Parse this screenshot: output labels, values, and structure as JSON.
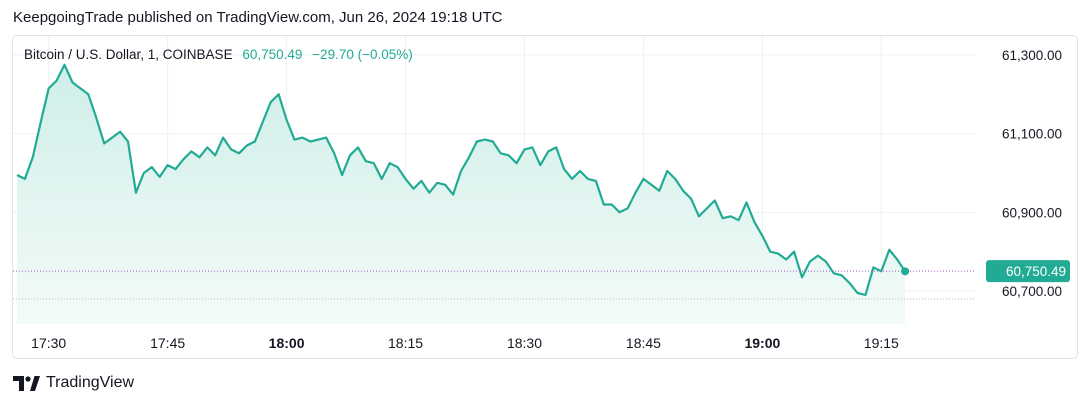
{
  "header": {
    "publisher_line": "KeepgoingTrade published on TradingView.com, Jun 26, 2024 19:18 UTC"
  },
  "legend": {
    "symbol": "Bitcoin / U.S. Dollar, 1, COINBASE",
    "last_price": "60,750.49",
    "change": "−29.70 (−0.05%)"
  },
  "footer": {
    "brand": "TradingView",
    "logo_icon": "tradingview-logo-icon"
  },
  "colors": {
    "line": "#22ab94",
    "area_top": "#cfeee8",
    "area_bottom": "#f3fbf9",
    "grid": "#eef0f4",
    "price_line": "#9c5fbd",
    "label_bg": "#22ab94"
  },
  "chart_data": {
    "type": "area",
    "x_unit": "time (UTC), 1-minute bars",
    "x_ticks": [
      "17:30",
      "17:45",
      "18:00",
      "18:15",
      "18:30",
      "18:45",
      "19:00",
      "19:15"
    ],
    "bold_ticks": [
      "18:00",
      "19:00"
    ],
    "y_ticks": [
      "61,300.00",
      "61,100.00",
      "60,900.00",
      "60,700.00"
    ],
    "y_tick_values": [
      61300,
      61100,
      60900,
      60700
    ],
    "ylim": [
      60640,
      61370
    ],
    "last_value": 60750.49,
    "last_value_label": "60,750.49",
    "grid": true,
    "series": [
      {
        "x": [
          "17:26",
          "17:27",
          "17:28",
          "17:29",
          "17:30",
          "17:31",
          "17:32",
          "17:33",
          "17:34",
          "17:35",
          "17:36",
          "17:37",
          "17:38",
          "17:39",
          "17:40",
          "17:41",
          "17:42",
          "17:43",
          "17:44",
          "17:45",
          "17:46",
          "17:47",
          "17:48",
          "17:49",
          "17:50",
          "17:51",
          "17:52",
          "17:53",
          "17:54",
          "17:55",
          "17:56",
          "17:57",
          "17:58",
          "17:59",
          "18:00",
          "18:01",
          "18:02",
          "18:03",
          "18:04",
          "18:05",
          "18:06",
          "18:07",
          "18:08",
          "18:09",
          "18:10",
          "18:11",
          "18:12",
          "18:13",
          "18:14",
          "18:15",
          "18:16",
          "18:17",
          "18:18",
          "18:19",
          "18:20",
          "18:21",
          "18:22",
          "18:23",
          "18:24",
          "18:25",
          "18:26",
          "18:27",
          "18:28",
          "18:29",
          "18:30",
          "18:31",
          "18:32",
          "18:33",
          "18:34",
          "18:35",
          "18:36",
          "18:37",
          "18:38",
          "18:39",
          "18:40",
          "18:41",
          "18:42",
          "18:43",
          "18:44",
          "18:45",
          "18:46",
          "18:47",
          "18:48",
          "18:49",
          "18:50",
          "18:51",
          "18:52",
          "18:53",
          "18:54",
          "18:55",
          "18:56",
          "18:57",
          "18:58",
          "18:59",
          "19:00",
          "19:01",
          "19:02",
          "19:03",
          "19:04",
          "19:05",
          "19:06",
          "19:07",
          "19:08",
          "19:09",
          "19:10",
          "19:11",
          "19:12",
          "19:13",
          "19:14",
          "19:15",
          "19:16",
          "19:17",
          "19:18"
        ],
        "values": [
          60995,
          60985,
          61040,
          61130,
          61215,
          61235,
          61275,
          61230,
          61215,
          61200,
          61140,
          61075,
          61090,
          61105,
          61080,
          60950,
          61000,
          61015,
          60990,
          61020,
          61010,
          61035,
          61055,
          61040,
          61065,
          61045,
          61090,
          61060,
          61050,
          61070,
          61080,
          61130,
          61180,
          61200,
          61135,
          61085,
          61090,
          61080,
          61085,
          61090,
          61050,
          60995,
          61045,
          61065,
          61030,
          61025,
          60985,
          61025,
          61015,
          60985,
          60960,
          60980,
          60950,
          60975,
          60970,
          60945,
          61005,
          61040,
          61080,
          61085,
          61080,
          61050,
          61045,
          61025,
          61060,
          61065,
          61020,
          61055,
          61065,
          61010,
          60985,
          61005,
          60985,
          60980,
          60920,
          60920,
          60900,
          60910,
          60950,
          60985,
          60970,
          60955,
          61005,
          60985,
          60955,
          60935,
          60890,
          60910,
          60930,
          60885,
          60890,
          60880,
          60925,
          60875,
          60840,
          60800,
          60795,
          60780,
          60800,
          60735,
          60775,
          60790,
          60775,
          60745,
          60740,
          60720,
          60695,
          60690,
          60760,
          60750,
          60805,
          60780,
          60750
        ]
      }
    ]
  }
}
